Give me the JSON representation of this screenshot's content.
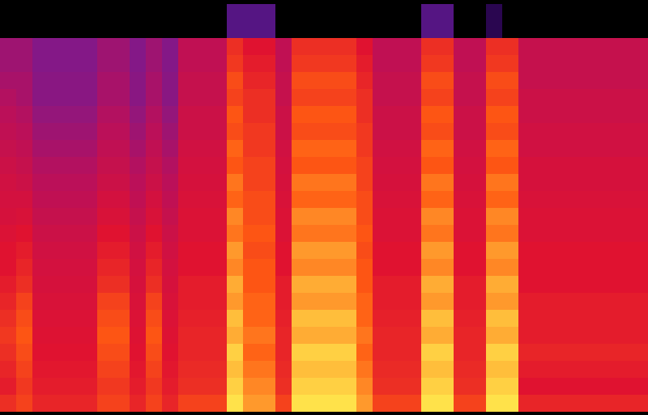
{
  "chart_data": {
    "type": "heatmap",
    "tick_labels": false,
    "cells": [
      [
        0,
        0,
        0,
        0,
        0,
        0,
        0,
        0,
        0,
        0,
        0,
        0,
        0,
        0,
        25,
        25,
        25,
        0,
        0,
        0,
        0,
        0,
        0,
        0,
        0,
        0,
        25,
        25,
        0,
        0,
        15,
        0,
        0,
        0,
        0,
        0,
        0,
        0,
        0,
        0
      ],
      [
        0,
        0,
        0,
        0,
        0,
        0,
        0,
        0,
        0,
        0,
        0,
        0,
        0,
        0,
        25,
        25,
        25,
        0,
        0,
        0,
        0,
        0,
        0,
        0,
        0,
        0,
        25,
        25,
        0,
        0,
        15,
        0,
        0,
        0,
        0,
        0,
        0,
        0,
        0,
        0
      ],
      [
        40,
        40,
        35,
        35,
        35,
        35,
        40,
        40,
        35,
        40,
        35,
        48,
        48,
        48,
        66,
        60,
        60,
        48,
        66,
        66,
        66,
        66,
        60,
        48,
        48,
        48,
        66,
        66,
        48,
        48,
        66,
        66,
        50,
        50,
        50,
        50,
        50,
        50,
        50,
        50
      ],
      [
        40,
        40,
        35,
        35,
        35,
        35,
        40,
        40,
        35,
        40,
        35,
        48,
        48,
        48,
        68,
        62,
        62,
        48,
        68,
        68,
        68,
        68,
        62,
        48,
        48,
        48,
        68,
        68,
        48,
        48,
        68,
        68,
        50,
        50,
        50,
        50,
        50,
        50,
        50,
        50
      ],
      [
        42,
        42,
        36,
        36,
        36,
        36,
        42,
        42,
        36,
        42,
        36,
        50,
        50,
        50,
        72,
        64,
        64,
        50,
        72,
        72,
        72,
        72,
        64,
        50,
        50,
        50,
        72,
        72,
        50,
        50,
        72,
        72,
        50,
        50,
        50,
        50,
        50,
        50,
        50,
        50
      ],
      [
        44,
        42,
        36,
        36,
        36,
        36,
        42,
        42,
        36,
        42,
        36,
        50,
        50,
        50,
        70,
        66,
        66,
        50,
        70,
        70,
        70,
        70,
        66,
        50,
        50,
        50,
        70,
        70,
        50,
        50,
        70,
        70,
        52,
        52,
        52,
        52,
        52,
        52,
        52,
        52
      ],
      [
        46,
        44,
        38,
        38,
        38,
        38,
        44,
        44,
        38,
        44,
        38,
        52,
        52,
        52,
        74,
        66,
        66,
        52,
        74,
        74,
        74,
        74,
        66,
        52,
        52,
        52,
        74,
        74,
        52,
        52,
        74,
        74,
        52,
        52,
        52,
        52,
        52,
        52,
        52,
        52
      ],
      [
        48,
        46,
        40,
        40,
        40,
        40,
        46,
        46,
        40,
        46,
        40,
        52,
        52,
        52,
        72,
        68,
        68,
        52,
        72,
        72,
        72,
        72,
        68,
        52,
        52,
        52,
        72,
        72,
        52,
        52,
        72,
        72,
        54,
        54,
        54,
        54,
        54,
        54,
        54,
        54
      ],
      [
        50,
        48,
        42,
        42,
        42,
        42,
        48,
        48,
        42,
        48,
        42,
        54,
        54,
        54,
        76,
        68,
        68,
        54,
        76,
        76,
        76,
        76,
        68,
        54,
        54,
        54,
        76,
        76,
        54,
        54,
        76,
        76,
        54,
        54,
        54,
        54,
        54,
        54,
        54,
        54
      ],
      [
        52,
        50,
        44,
        44,
        44,
        44,
        50,
        50,
        44,
        50,
        44,
        55,
        55,
        55,
        74,
        70,
        70,
        55,
        74,
        74,
        74,
        74,
        70,
        55,
        55,
        55,
        74,
        74,
        55,
        55,
        74,
        74,
        56,
        56,
        56,
        56,
        56,
        56,
        56,
        56
      ],
      [
        54,
        52,
        46,
        46,
        46,
        46,
        52,
        52,
        46,
        52,
        46,
        56,
        56,
        56,
        78,
        70,
        70,
        56,
        78,
        78,
        78,
        78,
        70,
        56,
        56,
        56,
        78,
        78,
        56,
        56,
        78,
        78,
        56,
        56,
        56,
        56,
        56,
        56,
        56,
        56
      ],
      [
        55,
        55,
        48,
        48,
        48,
        48,
        55,
        55,
        48,
        55,
        48,
        57,
        57,
        57,
        76,
        72,
        72,
        57,
        76,
        76,
        76,
        76,
        72,
        57,
        57,
        57,
        76,
        76,
        57,
        57,
        76,
        76,
        57,
        57,
        57,
        57,
        57,
        57,
        57,
        57
      ],
      [
        56,
        57,
        50,
        50,
        50,
        50,
        57,
        57,
        50,
        57,
        50,
        58,
        58,
        58,
        80,
        72,
        72,
        58,
        80,
        80,
        80,
        80,
        72,
        58,
        58,
        58,
        80,
        80,
        58,
        58,
        80,
        80,
        58,
        58,
        58,
        58,
        58,
        58,
        58,
        58
      ],
      [
        58,
        60,
        52,
        52,
        52,
        52,
        60,
        60,
        52,
        60,
        52,
        58,
        58,
        58,
        78,
        74,
        74,
        58,
        78,
        78,
        78,
        78,
        74,
        58,
        58,
        58,
        78,
        78,
        58,
        58,
        78,
        78,
        58,
        58,
        58,
        58,
        58,
        58,
        58,
        58
      ],
      [
        60,
        62,
        54,
        54,
        54,
        54,
        62,
        62,
        54,
        62,
        54,
        60,
        60,
        60,
        82,
        72,
        72,
        60,
        82,
        82,
        82,
        82,
        72,
        60,
        60,
        60,
        82,
        82,
        60,
        60,
        82,
        82,
        60,
        60,
        60,
        60,
        60,
        60,
        60,
        60
      ],
      [
        60,
        64,
        55,
        55,
        55,
        55,
        64,
        64,
        55,
        64,
        55,
        60,
        60,
        60,
        80,
        74,
        74,
        60,
        80,
        80,
        80,
        80,
        74,
        60,
        60,
        60,
        80,
        80,
        60,
        60,
        80,
        80,
        60,
        60,
        60,
        60,
        60,
        60,
        60,
        60
      ],
      [
        62,
        66,
        56,
        56,
        56,
        56,
        66,
        66,
        56,
        66,
        56,
        62,
        62,
        62,
        84,
        74,
        74,
        62,
        84,
        84,
        84,
        84,
        74,
        62,
        62,
        62,
        84,
        84,
        62,
        62,
        84,
        84,
        60,
        60,
        60,
        60,
        60,
        60,
        60,
        60
      ],
      [
        64,
        70,
        57,
        57,
        57,
        57,
        70,
        70,
        57,
        70,
        57,
        62,
        62,
        62,
        82,
        76,
        76,
        62,
        82,
        82,
        82,
        82,
        76,
        62,
        62,
        62,
        82,
        82,
        62,
        62,
        82,
        82,
        62,
        62,
        62,
        62,
        62,
        62,
        62,
        62
      ],
      [
        66,
        72,
        58,
        58,
        58,
        58,
        72,
        72,
        58,
        72,
        58,
        63,
        63,
        63,
        86,
        76,
        76,
        63,
        86,
        86,
        86,
        86,
        76,
        63,
        63,
        63,
        86,
        86,
        63,
        63,
        86,
        86,
        62,
        62,
        62,
        62,
        62,
        62,
        62,
        62
      ],
      [
        68,
        74,
        59,
        59,
        59,
        59,
        74,
        74,
        59,
        74,
        59,
        64,
        64,
        64,
        84,
        78,
        78,
        64,
        84,
        84,
        84,
        84,
        78,
        64,
        64,
        64,
        84,
        84,
        64,
        64,
        84,
        84,
        62,
        62,
        62,
        62,
        62,
        62,
        62,
        62
      ],
      [
        66,
        72,
        60,
        60,
        60,
        60,
        72,
        72,
        60,
        72,
        60,
        64,
        64,
        64,
        88,
        76,
        76,
        64,
        88,
        88,
        88,
        88,
        76,
        64,
        64,
        64,
        88,
        88,
        64,
        64,
        88,
        88,
        64,
        64,
        64,
        64,
        64,
        64,
        64,
        64
      ],
      [
        64,
        70,
        61,
        61,
        61,
        61,
        70,
        70,
        61,
        70,
        61,
        65,
        65,
        65,
        86,
        78,
        78,
        65,
        86,
        86,
        86,
        86,
        78,
        65,
        65,
        65,
        86,
        86,
        65,
        65,
        86,
        86,
        62,
        62,
        62,
        62,
        62,
        62,
        62,
        62
      ],
      [
        62,
        68,
        62,
        62,
        62,
        62,
        68,
        68,
        62,
        68,
        62,
        66,
        66,
        66,
        88,
        80,
        80,
        66,
        88,
        88,
        88,
        88,
        80,
        66,
        66,
        66,
        88,
        88,
        66,
        66,
        88,
        88,
        60,
        60,
        60,
        60,
        60,
        60,
        60,
        60
      ],
      [
        66,
        70,
        64,
        64,
        64,
        64,
        70,
        70,
        64,
        70,
        64,
        70,
        70,
        70,
        90,
        82,
        82,
        70,
        90,
        90,
        90,
        90,
        82,
        70,
        70,
        70,
        90,
        90,
        70,
        70,
        90,
        90,
        64,
        64,
        64,
        64,
        64,
        64,
        64,
        64
      ]
    ]
  }
}
